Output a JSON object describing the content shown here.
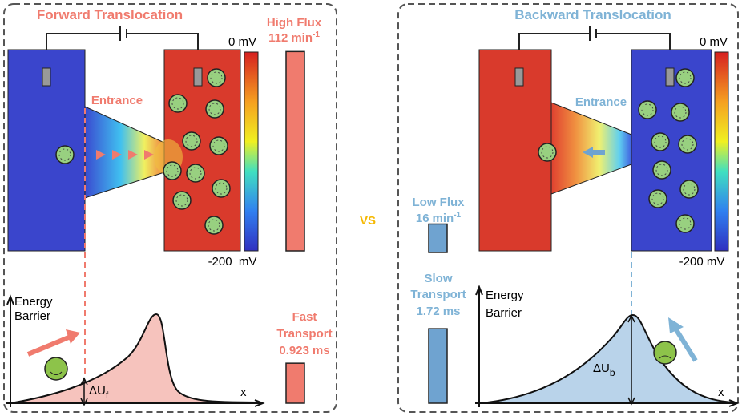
{
  "left_panel": {
    "title": "Forward Translocation",
    "scale_top": "0 mV",
    "scale_bottom": "-200  mV",
    "entrance": "Entrance",
    "flux": {
      "label": "High Flux",
      "value": 112,
      "unit": "min",
      "unit_sup": "-1"
    },
    "transport": {
      "label_1": "Fast",
      "label_2": "Transport",
      "value": 0.923,
      "unit": "ms"
    },
    "energy_axis": [
      "Energy",
      "Barrier"
    ],
    "delta_u": "ΔU",
    "delta_u_sub": "f",
    "x_axis": "x"
  },
  "separator": "VS",
  "right_panel": {
    "title": "Backward Translocation",
    "scale_top": "0 mV",
    "scale_bottom": "-200 mV",
    "entrance": "Entrance",
    "flux": {
      "label": "Low Flux",
      "value": 16,
      "unit": "min",
      "unit_sup": "-1"
    },
    "transport": {
      "label_1": "Slow",
      "label_2": "Transport",
      "value": 1.72,
      "unit": "ms"
    },
    "energy_axis": [
      "Energy",
      "Barrier"
    ],
    "delta_u": "ΔU",
    "delta_u_sub": "b",
    "x_axis": "x"
  }
}
